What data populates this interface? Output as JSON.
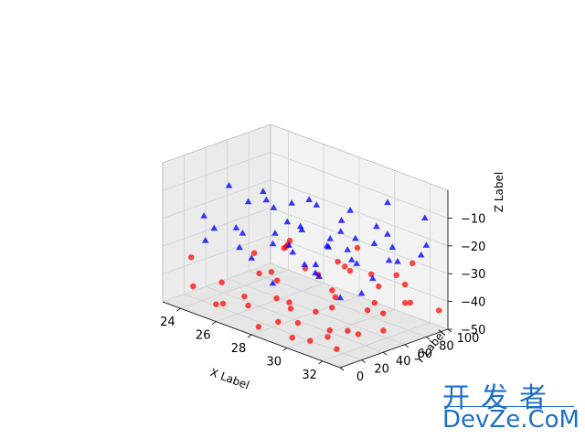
{
  "chart_data": {
    "type": "scatter",
    "projection": "3d",
    "title": "",
    "xlabel": "X Label",
    "ylabel": "Y Label",
    "zlabel": "Z Label",
    "xlim": [
      23,
      33
    ],
    "ylim": [
      0,
      100
    ],
    "zlim": [
      -50,
      0
    ],
    "xticks": [
      "24",
      "26",
      "28",
      "30",
      "32"
    ],
    "yticks": [
      "0",
      "20",
      "40",
      "60",
      "80",
      "100"
    ],
    "zticks": [
      "−10",
      "−20",
      "−30",
      "−40",
      "−50"
    ],
    "grid": true,
    "series": [
      {
        "marker": "circle",
        "color": "#ff0000",
        "points": [
          [
            23.5,
            20,
            -46
          ],
          [
            24.2,
            35,
            -45
          ],
          [
            25.1,
            15,
            -48
          ],
          [
            25.8,
            60,
            -44
          ],
          [
            26.3,
            25,
            -47
          ],
          [
            26.9,
            80,
            -42
          ],
          [
            27.4,
            45,
            -46
          ],
          [
            27.8,
            10,
            -49
          ],
          [
            28.3,
            70,
            -43
          ],
          [
            28.8,
            30,
            -48
          ],
          [
            29.2,
            55,
            -45
          ],
          [
            29.7,
            90,
            -41
          ],
          [
            30.1,
            20,
            -50
          ],
          [
            30.6,
            65,
            -44
          ],
          [
            31.0,
            40,
            -47
          ],
          [
            31.5,
            85,
            -42
          ],
          [
            31.9,
            15,
            -48
          ],
          [
            32.4,
            50,
            -45
          ],
          [
            32.8,
            95,
            -43
          ],
          [
            23.9,
            70,
            -40
          ],
          [
            24.6,
            90,
            -38
          ],
          [
            25.4,
            50,
            -41
          ],
          [
            26.1,
            5,
            -44
          ],
          [
            26.7,
            40,
            -36
          ],
          [
            27.1,
            95,
            -39
          ],
          [
            27.6,
            30,
            -42
          ],
          [
            28.1,
            85,
            -37
          ],
          [
            28.6,
            15,
            -46
          ],
          [
            29.0,
            75,
            -35
          ],
          [
            29.5,
            35,
            -43
          ],
          [
            30.0,
            5,
            -47
          ],
          [
            30.4,
            95,
            -36
          ],
          [
            30.9,
            25,
            -45
          ],
          [
            31.3,
            60,
            -39
          ],
          [
            31.8,
            80,
            -34
          ],
          [
            32.2,
            30,
            -44
          ],
          [
            32.7,
            70,
            -37
          ],
          [
            24.0,
            10,
            -33
          ],
          [
            25.0,
            85,
            -35
          ],
          [
            26.0,
            65,
            -32
          ],
          [
            27.0,
            10,
            -40
          ],
          [
            28.0,
            50,
            -33
          ],
          [
            29.0,
            20,
            -41
          ],
          [
            30.0,
            45,
            -38
          ],
          [
            31.0,
            100,
            -31
          ],
          [
            32.0,
            5,
            -42
          ],
          [
            33.0,
            40,
            -36
          ],
          [
            26.5,
            55,
            -30
          ],
          [
            28.5,
            90,
            -30
          ],
          [
            30.5,
            70,
            -32
          ]
        ]
      },
      {
        "marker": "triangle",
        "color": "#0000ff",
        "points": [
          [
            23.5,
            30,
            -22
          ],
          [
            24.1,
            75,
            -18
          ],
          [
            24.8,
            10,
            -25
          ],
          [
            25.5,
            55,
            -15
          ],
          [
            26.2,
            90,
            -20
          ],
          [
            26.8,
            20,
            -28
          ],
          [
            27.3,
            65,
            -12
          ],
          [
            27.9,
            40,
            -26
          ],
          [
            28.4,
            85,
            -16
          ],
          [
            28.9,
            5,
            -30
          ],
          [
            29.4,
            50,
            -19
          ],
          [
            29.9,
            95,
            -11
          ],
          [
            30.3,
            25,
            -27
          ],
          [
            30.8,
            70,
            -14
          ],
          [
            31.2,
            45,
            -23
          ],
          [
            31.7,
            100,
            -13
          ],
          [
            32.1,
            15,
            -29
          ],
          [
            32.6,
            60,
            -21
          ],
          [
            33.0,
            80,
            -17
          ],
          [
            23.8,
            55,
            -29
          ],
          [
            24.5,
            95,
            -24
          ],
          [
            25.2,
            35,
            -30
          ],
          [
            25.9,
            80,
            -27
          ],
          [
            26.6,
            45,
            -23
          ],
          [
            27.2,
            5,
            -16
          ],
          [
            27.7,
            75,
            -29
          ],
          [
            28.2,
            30,
            -13
          ],
          [
            28.7,
            60,
            -25
          ],
          [
            29.2,
            15,
            -17
          ],
          [
            29.7,
            65,
            -28
          ],
          [
            30.2,
            90,
            -21
          ],
          [
            30.7,
            5,
            -19
          ],
          [
            31.2,
            75,
            -26
          ],
          [
            31.6,
            30,
            -15
          ],
          [
            32.1,
            90,
            -24
          ],
          [
            32.5,
            40,
            -12
          ],
          [
            33.0,
            20,
            -26
          ],
          [
            24.0,
            45,
            -12
          ],
          [
            25.0,
            70,
            -21
          ],
          [
            26.0,
            30,
            -11
          ],
          [
            27.0,
            100,
            -25
          ],
          [
            28.0,
            20,
            -20
          ],
          [
            29.0,
            80,
            -24
          ],
          [
            30.0,
            50,
            -15
          ],
          [
            31.0,
            10,
            -22
          ],
          [
            32.0,
            65,
            -18
          ],
          [
            25.6,
            5,
            -18
          ],
          [
            27.5,
            55,
            -21
          ],
          [
            29.5,
            35,
            -26
          ],
          [
            31.5,
            55,
            -29
          ]
        ]
      }
    ]
  },
  "watermark": {
    "cn": "开发者",
    "en": "DevZe.CoM"
  }
}
